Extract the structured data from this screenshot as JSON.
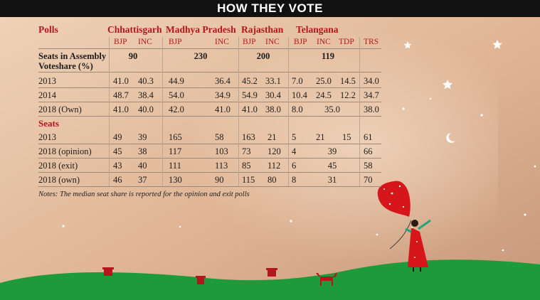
{
  "title": "HOW THEY VOTE",
  "states": [
    "Chhattisgarh",
    "Madhya Pradesh",
    "Rajasthan",
    "Telangana"
  ],
  "polls_label": "Polls",
  "parties": [
    "BJP",
    "INC",
    "BJP",
    "INC",
    "BJP",
    "INC",
    "BJP",
    "INC",
    "TDP",
    "TRS"
  ],
  "seats_in_assembly": {
    "label": "Seats in Assembly",
    "values": [
      "90",
      "230",
      "200",
      "119"
    ]
  },
  "voteshare": {
    "label": "Voteshare  (%)",
    "rows": [
      {
        "label": "2013",
        "values": [
          "41.0",
          "40.3",
          "44.9",
          "36.4",
          "45.2",
          "33.1",
          "7.0",
          "25.0",
          "14.5",
          "34.0"
        ]
      },
      {
        "label": "2014",
        "values": [
          "48.7",
          "38.4",
          "54.0",
          "34.9",
          "54.9",
          "30.4",
          "10.4",
          "24.5",
          "12.2",
          "34.7"
        ]
      },
      {
        "label": "2018 (Own)",
        "values": [
          "41.0",
          "40.0",
          "42.0",
          "41.0",
          "41.0",
          "38.0",
          "8.0",
          "35.0",
          "38.0"
        ]
      }
    ]
  },
  "seats": {
    "label": "Seats",
    "rows": [
      {
        "label": "2013",
        "values": [
          "49",
          "39",
          "165",
          "58",
          "163",
          "21",
          "5",
          "21",
          "15",
          "61"
        ]
      },
      {
        "label": "2018 (opinion)",
        "values": [
          "45",
          "38",
          "117",
          "103",
          "73",
          "120",
          "4",
          "39",
          "66"
        ]
      },
      {
        "label": "2018 (exit)",
        "values": [
          "43",
          "40",
          "111",
          "113",
          "85",
          "112",
          "6",
          "45",
          "58"
        ]
      },
      {
        "label": "2018 (own)",
        "values": [
          "46",
          "37",
          "130",
          "90",
          "115",
          "80",
          "8",
          "31",
          "70"
        ]
      }
    ]
  },
  "note": "Notes: The median seat share is reported for the opinion and exit polls",
  "colors": {
    "banner": "#111111",
    "heading": "#b3161c",
    "sky_top": "#e9c7a9",
    "sky_bottom": "#c59a7a",
    "hill": "#1f9a3a",
    "balloon": "#d7161c",
    "dress": "#d7161c",
    "hut": "#b3161c"
  },
  "icons": [
    "star-icon",
    "crescent-moon-icon",
    "balloon-icon",
    "girl-illustration",
    "hut-icon",
    "cow-icon"
  ]
}
